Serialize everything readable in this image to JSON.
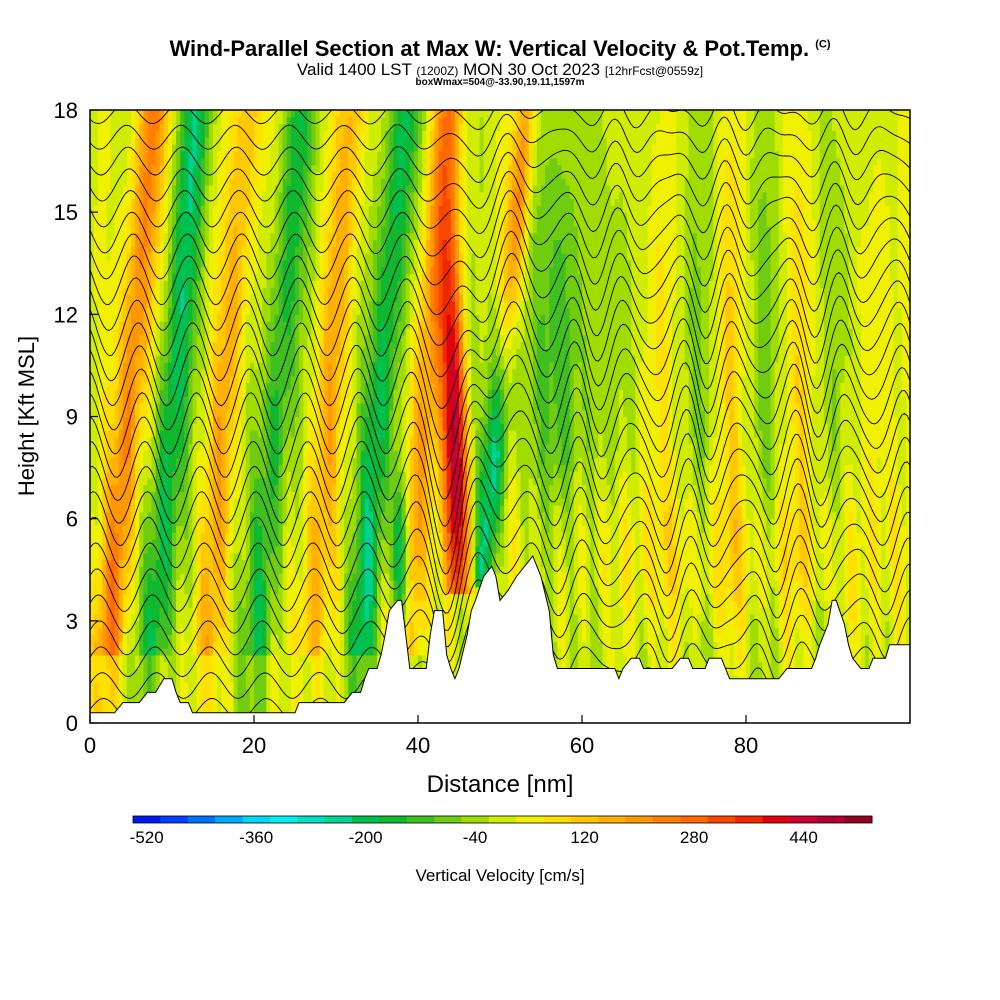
{
  "header": {
    "title_main": "Wind-Parallel Section at Max W: Vertical Velocity & Pot.Temp.",
    "copyright": "(C)",
    "valid_prefix": "Valid 1400 LST",
    "valid_utc": "(1200Z)",
    "valid_date": "MON 30 Oct 2023",
    "forecast_info": "[12hrFcst@0559z]",
    "boxwmax": "boxWmax=504@-33.90,19.11,1597m"
  },
  "colorbar": {
    "label": "Vertical Velocity [cm/s]",
    "tick_labels": [
      "-520",
      "-360",
      "-200",
      "-40",
      "120",
      "280",
      "440"
    ],
    "min": -540,
    "max": 540,
    "step": 40,
    "colors": [
      "#0018f0",
      "#0040f8",
      "#0070f8",
      "#00a8f8",
      "#00d8f8",
      "#00f0f0",
      "#00e0c0",
      "#00d090",
      "#00c050",
      "#10b830",
      "#40c020",
      "#70cc10",
      "#a0dc00",
      "#d0ec00",
      "#f0f000",
      "#ffe000",
      "#ffc800",
      "#ffb000",
      "#ff9800",
      "#ff8000",
      "#ff6800",
      "#f84800",
      "#f02800",
      "#e00010",
      "#cc0030",
      "#b00030",
      "#900020"
    ]
  },
  "chart_data": {
    "type": "heatmap",
    "title": "Wind-Parallel Section at Max W: Vertical Velocity & Pot.Temp.",
    "xlabel": "Distance [nm]",
    "ylabel": "Height [Kft MSL]",
    "xlim": [
      0,
      100
    ],
    "ylim": [
      0,
      18
    ],
    "x_ticks": [
      0,
      20,
      40,
      60,
      80
    ],
    "y_ticks": [
      0,
      3,
      6,
      9,
      12,
      15,
      18
    ],
    "x_tick_labels": [
      "0",
      "20",
      "40",
      "60",
      "80"
    ],
    "y_tick_labels": [
      "0",
      "3",
      "6",
      "9",
      "12",
      "15",
      "18"
    ],
    "variable": "Vertical Velocity [cm/s]",
    "max_vertical_velocity_cm_s": 504,
    "contour_variable": "Pot.Temp.",
    "terrain_kft": [
      [
        0,
        0.3
      ],
      [
        3,
        0.3
      ],
      [
        4,
        0.6
      ],
      [
        6,
        0.6
      ],
      [
        7,
        0.9
      ],
      [
        8,
        0.9
      ],
      [
        9,
        1.3
      ],
      [
        10,
        1.3
      ],
      [
        10.5,
        0.9
      ],
      [
        11,
        0.6
      ],
      [
        12,
        0.6
      ],
      [
        12.5,
        0.3
      ],
      [
        16,
        0.3
      ],
      [
        25,
        0.3
      ],
      [
        25.5,
        0.6
      ],
      [
        31,
        0.6
      ],
      [
        32,
        0.9
      ],
      [
        33,
        0.9
      ],
      [
        33.5,
        1.3
      ],
      [
        34,
        1.6
      ],
      [
        35,
        1.6
      ],
      [
        35.5,
        2.0
      ],
      [
        36,
        2.6
      ],
      [
        36.5,
        3.3
      ],
      [
        37.5,
        3.6
      ],
      [
        38,
        3.6
      ],
      [
        38.5,
        2.6
      ],
      [
        39,
        1.6
      ],
      [
        41,
        1.6
      ],
      [
        41.5,
        2.6
      ],
      [
        42,
        3.3
      ],
      [
        43,
        3.3
      ],
      [
        43.5,
        2.0
      ],
      [
        44,
        1.6
      ],
      [
        44.5,
        1.3
      ],
      [
        45,
        1.6
      ],
      [
        46,
        2.6
      ],
      [
        46.5,
        3.3
      ],
      [
        47,
        3.6
      ],
      [
        48,
        4.3
      ],
      [
        49,
        4.6
      ],
      [
        49.5,
        4.3
      ],
      [
        50,
        3.6
      ],
      [
        51,
        3.9
      ],
      [
        52,
        4.3
      ],
      [
        53,
        4.6
      ],
      [
        54,
        4.9
      ],
      [
        55,
        4.3
      ],
      [
        56,
        3.3
      ],
      [
        56.5,
        2.0
      ],
      [
        57,
        1.6
      ],
      [
        58,
        1.6
      ],
      [
        64,
        1.6
      ],
      [
        64.5,
        1.3
      ],
      [
        65,
        1.6
      ],
      [
        66,
        1.9
      ],
      [
        67,
        1.9
      ],
      [
        67.5,
        1.6
      ],
      [
        71,
        1.6
      ],
      [
        72,
        1.9
      ],
      [
        73,
        1.9
      ],
      [
        73.5,
        1.6
      ],
      [
        75,
        1.6
      ],
      [
        75.5,
        1.9
      ],
      [
        77,
        1.9
      ],
      [
        77.5,
        1.6
      ],
      [
        78,
        1.3
      ],
      [
        84,
        1.3
      ],
      [
        85,
        1.6
      ],
      [
        88,
        1.6
      ],
      [
        88.5,
        1.9
      ],
      [
        89,
        2.3
      ],
      [
        90,
        2.9
      ],
      [
        90.5,
        3.6
      ],
      [
        91,
        3.6
      ],
      [
        92,
        2.9
      ],
      [
        92.5,
        2.3
      ],
      [
        93,
        1.9
      ],
      [
        94,
        1.6
      ],
      [
        95,
        1.6
      ],
      [
        95.5,
        1.9
      ],
      [
        97,
        1.9
      ],
      [
        97.5,
        2.3
      ],
      [
        100,
        2.3
      ]
    ]
  }
}
